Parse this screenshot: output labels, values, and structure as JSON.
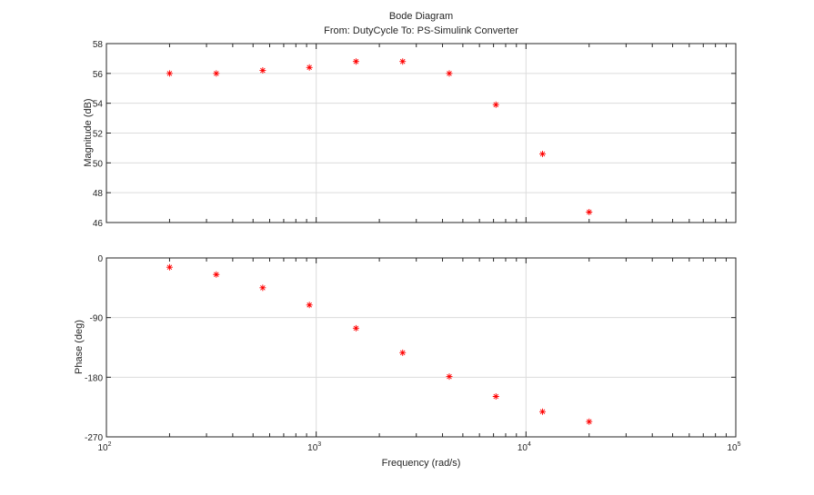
{
  "chart_data": {
    "type": "scatter",
    "title": "Bode Diagram",
    "subtitle": "From: DutyCycle  To: PS-Simulink Converter",
    "xlabel": "Frequency (rad/s)",
    "xscale": "log",
    "xlim": [
      100,
      100000
    ],
    "xticks": [
      100,
      1000,
      10000,
      100000
    ],
    "xtick_labels": [
      [
        "10",
        "2"
      ],
      [
        "10",
        "3"
      ],
      [
        "10",
        "4"
      ],
      [
        "10",
        "5"
      ]
    ],
    "grid": true,
    "marker": "asterisk",
    "marker_color": "#ff0000",
    "x": [
      200,
      334,
      556,
      928,
      1548,
      2583,
      4309,
      7189,
      11994,
      20000
    ],
    "subplots": [
      {
        "ylabel": "Magnitude (dB)",
        "ylim": [
          46,
          58
        ],
        "yticks": [
          46,
          48,
          50,
          52,
          54,
          56,
          58
        ],
        "ytick_labels": [
          "46",
          "48",
          "50",
          "52",
          "54",
          "56",
          "58"
        ],
        "values": [
          56.0,
          56.0,
          56.2,
          56.4,
          56.8,
          56.8,
          56.0,
          53.9,
          50.6,
          46.7
        ]
      },
      {
        "ylabel": "Phase (deg)",
        "ylim": [
          -270,
          0
        ],
        "yticks": [
          -270,
          -180,
          -90,
          0
        ],
        "ytick_labels": [
          "-270",
          "-180",
          "-90",
          "0"
        ],
        "values": [
          -14,
          -25,
          -45,
          -71,
          -106,
          -143,
          -179,
          -209,
          -232,
          -247
        ]
      }
    ]
  }
}
